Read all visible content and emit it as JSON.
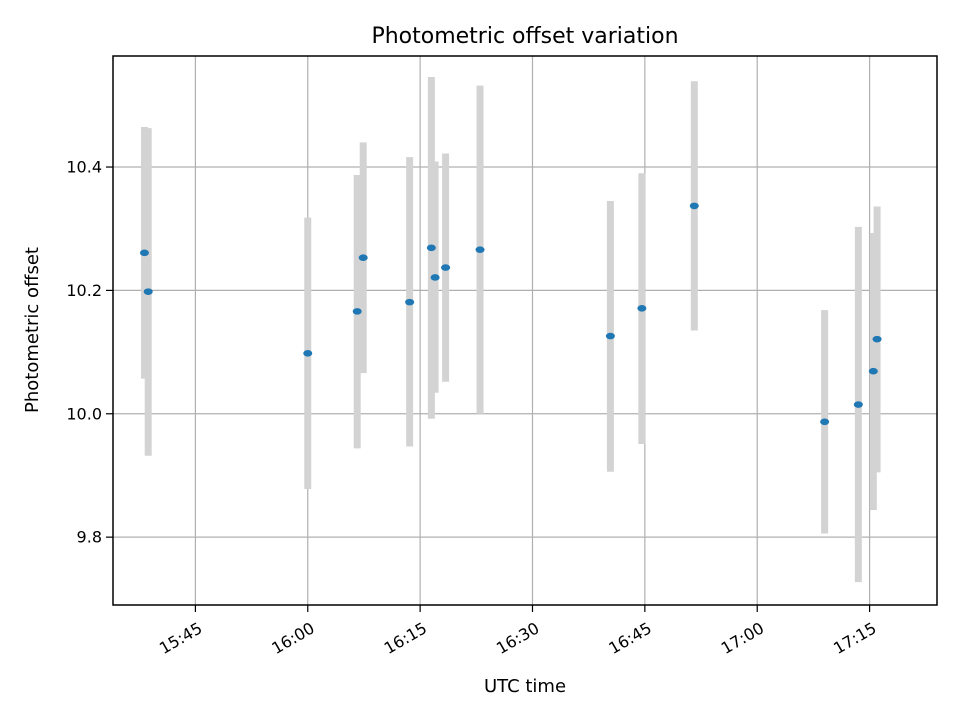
{
  "chart_data": {
    "type": "scatter",
    "title": "Photometric offset variation",
    "xlabel": "UTC time",
    "ylabel": "Photometric offset",
    "xlim": [
      "15:34",
      "17:24"
    ],
    "ylim": [
      9.69,
      10.58
    ],
    "x_ticks": [
      "15:45",
      "16:00",
      "16:15",
      "16:30",
      "16:45",
      "17:00",
      "17:15"
    ],
    "y_ticks": [
      9.8,
      10.0,
      10.2,
      10.4
    ],
    "grid": true,
    "colors": {
      "point": "#1f77b4",
      "errorbar": "#d3d3d3"
    },
    "points": [
      {
        "x": "15:38.2",
        "y": 10.261,
        "low": 10.057,
        "high": 10.465
      },
      {
        "x": "15:38.7",
        "y": 10.198,
        "low": 9.932,
        "high": 10.463
      },
      {
        "x": "16:00.0",
        "y": 10.098,
        "low": 9.878,
        "high": 10.318
      },
      {
        "x": "16:06.6",
        "y": 10.166,
        "low": 9.944,
        "high": 10.387
      },
      {
        "x": "16:07.4",
        "y": 10.253,
        "low": 10.066,
        "high": 10.44
      },
      {
        "x": "16:13.6",
        "y": 10.181,
        "low": 9.947,
        "high": 10.416
      },
      {
        "x": "16:16.5",
        "y": 10.269,
        "low": 9.992,
        "high": 10.546
      },
      {
        "x": "16:17.0",
        "y": 10.221,
        "low": 10.034,
        "high": 10.409
      },
      {
        "x": "16:18.4",
        "y": 10.237,
        "low": 10.052,
        "high": 10.422
      },
      {
        "x": "16:23.0",
        "y": 10.266,
        "low": 10.0,
        "high": 10.532
      },
      {
        "x": "16:40.4",
        "y": 10.126,
        "low": 9.906,
        "high": 10.345
      },
      {
        "x": "16:44.6",
        "y": 10.171,
        "low": 9.951,
        "high": 10.39
      },
      {
        "x": "16:51.6",
        "y": 10.337,
        "low": 10.135,
        "high": 10.539
      },
      {
        "x": "17:09.0",
        "y": 9.987,
        "low": 9.806,
        "high": 10.168
      },
      {
        "x": "17:13.5",
        "y": 10.015,
        "low": 9.727,
        "high": 10.303
      },
      {
        "x": "17:15.5",
        "y": 10.069,
        "low": 9.844,
        "high": 10.293
      },
      {
        "x": "17:16.0",
        "y": 10.121,
        "low": 9.905,
        "high": 10.336
      }
    ]
  }
}
